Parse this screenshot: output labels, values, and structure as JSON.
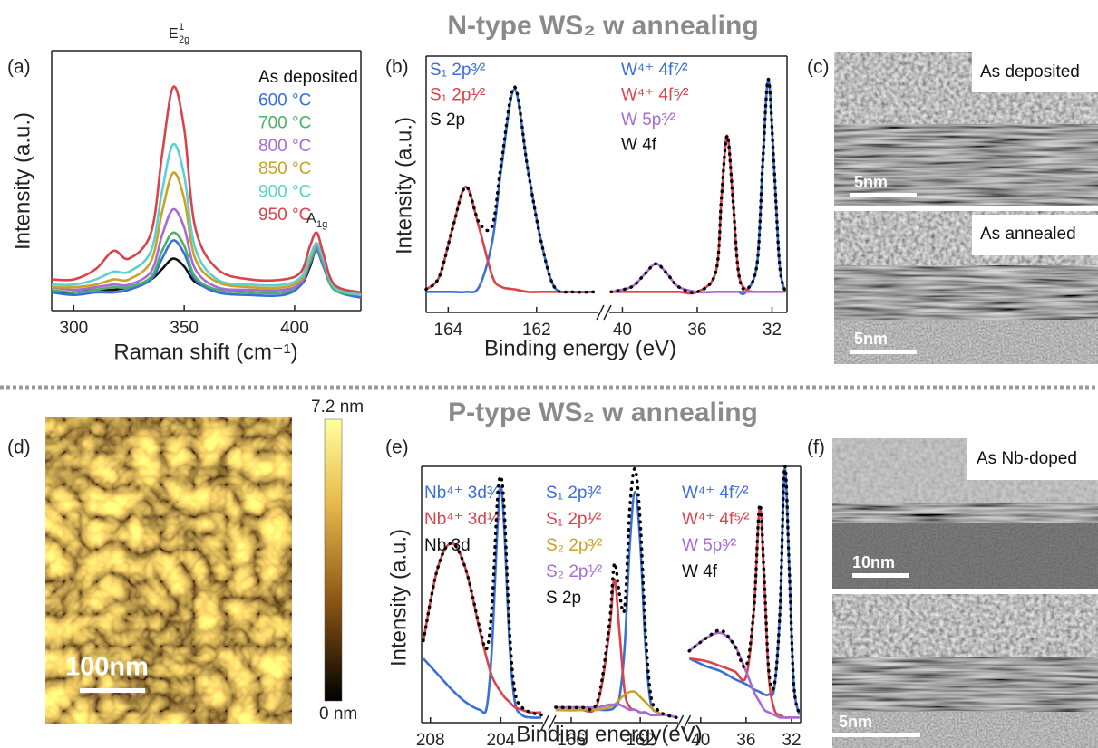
{
  "sections": {
    "top_title": "N-type WS₂ w annealing",
    "bottom_title": "P-type WS₂ w annealing"
  },
  "chart_data": [
    {
      "type": "line",
      "panel_label": "(a)",
      "x_label": "Raman shift (cm⁻¹)",
      "y_label": "Intensity (a.u.)",
      "xlim": [
        290,
        430
      ],
      "xticks": [
        300,
        350,
        400
      ],
      "ylim": [
        0,
        1
      ],
      "annotations": [
        {
          "text": "E",
          "sup": "1",
          "sub": "2g"
        },
        {
          "text": "A",
          "sub": "1g"
        }
      ],
      "x": [
        290,
        300,
        310,
        318,
        325,
        335,
        340,
        345,
        350,
        355,
        365,
        380,
        395,
        403,
        407,
        410,
        413,
        418,
        430
      ],
      "series": [
        {
          "name": "As deposited",
          "color": "#111111",
          "values": [
            0.07,
            0.07,
            0.08,
            0.08,
            0.09,
            0.12,
            0.16,
            0.2,
            0.17,
            0.11,
            0.08,
            0.07,
            0.07,
            0.1,
            0.17,
            0.24,
            0.18,
            0.09,
            0.06
          ]
        },
        {
          "name": "600 °C",
          "color": "#3a6fd8",
          "values": [
            0.07,
            0.06,
            0.07,
            0.07,
            0.08,
            0.12,
            0.2,
            0.27,
            0.22,
            0.12,
            0.07,
            0.06,
            0.06,
            0.1,
            0.18,
            0.23,
            0.17,
            0.08,
            0.05
          ]
        },
        {
          "name": "700 °C",
          "color": "#4caf6a",
          "values": [
            0.08,
            0.07,
            0.08,
            0.09,
            0.09,
            0.13,
            0.23,
            0.3,
            0.25,
            0.13,
            0.08,
            0.07,
            0.07,
            0.11,
            0.19,
            0.24,
            0.18,
            0.08,
            0.06
          ]
        },
        {
          "name": "800 °C",
          "color": "#a86bd6",
          "values": [
            0.09,
            0.08,
            0.09,
            0.1,
            0.1,
            0.15,
            0.29,
            0.39,
            0.32,
            0.16,
            0.09,
            0.08,
            0.08,
            0.11,
            0.2,
            0.25,
            0.19,
            0.09,
            0.06
          ]
        },
        {
          "name": "850 °C",
          "color": "#c9a227",
          "values": [
            0.09,
            0.09,
            0.1,
            0.12,
            0.12,
            0.19,
            0.38,
            0.53,
            0.43,
            0.2,
            0.11,
            0.09,
            0.09,
            0.12,
            0.2,
            0.26,
            0.2,
            0.09,
            0.06
          ]
        },
        {
          "name": "900 °C",
          "color": "#5cd0d0",
          "values": [
            0.1,
            0.1,
            0.12,
            0.15,
            0.15,
            0.23,
            0.46,
            0.64,
            0.52,
            0.24,
            0.12,
            0.1,
            0.1,
            0.13,
            0.21,
            0.26,
            0.2,
            0.09,
            0.06
          ]
        },
        {
          "name": "950 °C",
          "color": "#d9434b",
          "values": [
            0.12,
            0.12,
            0.16,
            0.23,
            0.2,
            0.3,
            0.6,
            0.86,
            0.7,
            0.32,
            0.16,
            0.12,
            0.12,
            0.15,
            0.25,
            0.3,
            0.22,
            0.1,
            0.07
          ]
        }
      ]
    },
    {
      "type": "line",
      "panel_label": "(b)",
      "x_label": "Binding energy (eV)",
      "y_label": "Intensity (a.u.)",
      "ylim": [
        0,
        1
      ],
      "segments": [
        {
          "xlim": [
            164.5,
            160.6
          ],
          "xticks": [
            164,
            162
          ],
          "legend_title": "S 2p",
          "x": [
            164.5,
            164.2,
            163.9,
            163.6,
            163.3,
            163,
            162.8,
            162.5,
            162.2,
            161.9,
            161.6,
            161.2,
            160.7
          ],
          "series": [
            {
              "name": "S₁ 2p³⁄²",
              "color": "#3a6fd8",
              "values": [
                0.08,
                0.08,
                0.08,
                0.08,
                0.1,
                0.28,
                0.56,
                0.87,
                0.56,
                0.28,
                0.1,
                0.08,
                0.08
              ]
            },
            {
              "name": "S₁ 2p¹⁄²",
              "color": "#d9434b",
              "values": [
                0.09,
                0.14,
                0.33,
                0.49,
                0.33,
                0.14,
                0.1,
                0.09,
                0.08,
                0.08,
                0.08,
                0.08,
                0.08
              ]
            },
            {
              "color": "#000000",
              "style": "dotted",
              "values": [
                0.09,
                0.14,
                0.33,
                0.49,
                0.35,
                0.34,
                0.58,
                0.88,
                0.56,
                0.28,
                0.1,
                0.08,
                0.08
              ]
            }
          ]
        },
        {
          "xlim": [
            40.7,
            31.2
          ],
          "xticks": [
            40,
            36,
            32
          ],
          "legend_title": "W 4f",
          "x": [
            40.6,
            39.5,
            38.8,
            38.2,
            37.6,
            37,
            36,
            35,
            34.7,
            34.4,
            34.1,
            33.8,
            33.4,
            32.8,
            32.5,
            32.2,
            31.9,
            31.6,
            31.3
          ],
          "series": [
            {
              "name": "W⁴⁺ 4f⁷⁄²",
              "color": "#3a6fd8",
              "values": [
                null,
                null,
                null,
                null,
                null,
                null,
                null,
                null,
                null,
                null,
                null,
                0.08,
                0.08,
                0.19,
                0.58,
                0.91,
                0.58,
                0.19,
                0.08
              ]
            },
            {
              "name": "W⁴⁺ 4f⁵⁄²",
              "color": "#d9434b",
              "values": [
                0.08,
                0.08,
                0.08,
                0.08,
                0.08,
                0.08,
                0.08,
                0.16,
                0.45,
                0.69,
                0.45,
                0.16,
                0.09,
                0.08,
                null,
                null,
                null,
                null,
                null
              ]
            },
            {
              "name": "W 5p³⁄²",
              "color": "#a86bd6",
              "values": [
                0.08,
                0.1,
                0.15,
                0.19,
                0.15,
                0.1,
                0.08,
                0.08,
                0.08,
                0.08,
                0.08,
                0.08,
                0.08,
                0.08,
                0.08,
                0.08,
                0.08,
                0.08,
                0.08
              ]
            },
            {
              "color": "#000000",
              "style": "dotted",
              "values": [
                0.08,
                0.1,
                0.15,
                0.19,
                0.15,
                0.1,
                0.08,
                0.16,
                0.45,
                0.69,
                0.45,
                0.16,
                0.09,
                0.19,
                0.58,
                0.91,
                0.58,
                0.19,
                0.08
              ]
            }
          ]
        }
      ]
    },
    {
      "type": "line",
      "panel_label": "(e)",
      "x_label": "Binding energy(eV)",
      "y_label": "Intensity (a.u.)",
      "ylim": [
        0,
        1
      ],
      "segments": [
        {
          "xlim": [
            208.5,
            201.6
          ],
          "xticks": [
            208,
            204
          ],
          "legend_title": "Nb 3d",
          "x": [
            208.4,
            207.6,
            206.8,
            206,
            205.2,
            204.8,
            204.5,
            204.2,
            204,
            203.8,
            203.5,
            203.2,
            202.8,
            202.3,
            201.7
          ],
          "series": [
            {
              "name": "Nb⁴⁺ 3d³⁄²",
              "color": "#3a6fd8",
              "values": [
                0.25,
                0.19,
                0.13,
                0.08,
                0.05,
                0.06,
                0.3,
                0.75,
                0.92,
                0.75,
                0.3,
                0.08,
                0.03,
                0.02,
                0.02
              ]
            },
            {
              "name": "Nb⁴⁺ 3d¹⁄²",
              "color": "#d9434b",
              "values": [
                0.32,
                0.6,
                0.7,
                0.6,
                0.36,
                0.25,
                0.18,
                0.14,
                0.12,
                0.1,
                0.08,
                0.06,
                0.05,
                0.04,
                0.04
              ]
            },
            {
              "color": "#000000",
              "style": "dotted",
              "values": [
                0.32,
                0.6,
                0.7,
                0.6,
                0.37,
                0.29,
                0.46,
                0.86,
                0.96,
                0.82,
                0.35,
                0.12,
                0.06,
                0.04,
                0.03
              ]
            }
          ]
        },
        {
          "xlim": [
            167,
            159.8
          ],
          "xticks": [
            166,
            162
          ],
          "legend_title": "S 2p",
          "x": [
            166.9,
            165.5,
            164.5,
            163.8,
            163.5,
            163.2,
            162.9,
            162.6,
            162.3,
            162,
            161.7,
            161.4,
            161,
            160.5,
            159.9
          ],
          "series": [
            {
              "name": "S₁ 2p³⁄²",
              "color": "#3a6fd8",
              "values": [
                0.05,
                0.05,
                0.05,
                0.05,
                0.06,
                0.1,
                0.3,
                0.7,
                0.9,
                0.7,
                0.3,
                0.08,
                0.04,
                0.03,
                0.02
              ]
            },
            {
              "name": "S₁ 2p¹⁄²",
              "color": "#d9434b",
              "values": [
                0.05,
                0.05,
                0.07,
                0.35,
                0.56,
                0.35,
                0.12,
                0.06,
                0.05,
                0.04,
                0.04,
                0.03,
                0.03,
                0.03,
                0.02
              ]
            },
            {
              "name": "S₂ 2p³⁄²",
              "color": "#c9a227",
              "values": [
                0.05,
                0.05,
                0.05,
                0.06,
                0.07,
                0.09,
                0.11,
                0.12,
                0.12,
                0.1,
                0.08,
                0.06,
                0.04,
                0.03,
                0.02
              ]
            },
            {
              "name": "S₂ 2p¹⁄²",
              "color": "#a86bd6",
              "values": [
                0.06,
                0.06,
                0.06,
                0.07,
                0.07,
                0.07,
                0.06,
                0.05,
                0.05,
                0.04,
                0.04,
                0.03,
                0.03,
                0.03,
                0.02
              ]
            },
            {
              "color": "#000000",
              "style": "dotted",
              "values": [
                0.06,
                0.06,
                0.08,
                0.38,
                0.62,
                0.5,
                0.45,
                0.84,
                0.99,
                0.78,
                0.36,
                0.11,
                0.05,
                0.03,
                0.02
              ]
            }
          ]
        },
        {
          "xlim": [
            41.1,
            31.2
          ],
          "xticks": [
            40,
            36,
            32
          ],
          "legend_title": "W 4f",
          "x": [
            41,
            39.5,
            38.2,
            37,
            36,
            35.3,
            34.8,
            34.4,
            34,
            33.5,
            33,
            32.6,
            32.2,
            31.8,
            31.3
          ],
          "series": [
            {
              "name": "W⁴⁺ 4f⁷⁄²",
              "color": "#3a6fd8",
              "values": [
                0.25,
                0.22,
                0.2,
                0.17,
                0.15,
                0.13,
                0.12,
                0.11,
                0.11,
                0.14,
                0.45,
                0.99,
                0.6,
                0.15,
                0.03
              ]
            },
            {
              "name": "W⁴⁺ 4f⁵⁄²",
              "color": "#d9434b",
              "values": [
                0.25,
                0.24,
                0.22,
                0.2,
                0.18,
                0.45,
                0.84,
                0.55,
                0.18,
                0.05,
                0.03,
                0.02,
                0.02,
                0.02,
                0.02
              ]
            },
            {
              "name": "W 5p³⁄²",
              "color": "#a86bd6",
              "values": [
                0.28,
                0.33,
                0.35,
                0.3,
                0.2,
                0.12,
                0.08,
                0.05,
                0.04,
                0.03,
                0.02,
                0.02,
                0.02,
                0.02,
                0.02
              ]
            },
            {
              "color": "#000000",
              "style": "dotted",
              "values": [
                0.28,
                0.33,
                0.36,
                0.3,
                0.22,
                0.45,
                0.85,
                0.56,
                0.2,
                0.15,
                0.45,
                1.0,
                0.6,
                0.15,
                0.03
              ]
            }
          ]
        }
      ]
    }
  ],
  "images": {
    "panel_c": {
      "panel_label": "(c)",
      "top": {
        "caption": "As deposited",
        "scale_bar": "5nm"
      },
      "bottom": {
        "caption": "As annealed",
        "scale_bar": "5nm"
      }
    },
    "panel_d": {
      "panel_label": "(d)",
      "scale_bar": "100nm",
      "colorbar_max": "7.2 nm",
      "colorbar_min": "0 nm"
    },
    "panel_f": {
      "panel_label": "(f)",
      "top": {
        "caption": "As Nb-doped",
        "scale_bar": "10nm"
      },
      "bottom": {
        "scale_bar": "5nm"
      }
    }
  }
}
